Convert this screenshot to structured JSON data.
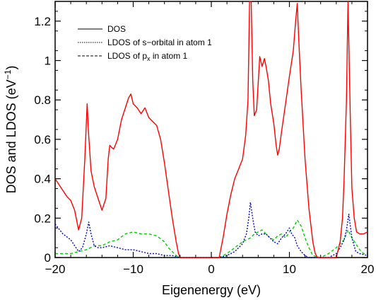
{
  "chart_data": {
    "type": "line",
    "xlabel": "Eigenenergy (eV)",
    "ylabel": "DOS and LDOS (eV",
    "ylabel_superscript": "−1",
    "ylabel_close": ")",
    "xlim": [
      -20,
      20
    ],
    "ylim": [
      0,
      1.3
    ],
    "x_ticks": [
      -20,
      -10,
      0,
      10,
      20
    ],
    "x_tick_labels": [
      "−20",
      "−10",
      "0",
      "10",
      "20"
    ],
    "y_ticks": [
      0,
      0.2,
      0.4,
      0.6,
      0.8,
      1,
      1.2
    ],
    "y_tick_labels": [
      "0",
      "0.2",
      "0.4",
      "0.6",
      "0.8",
      "1",
      "1.2"
    ],
    "legend_position": "top-left",
    "legend": [
      {
        "label": "DOS",
        "style": "solid"
      },
      {
        "label": "LDOS of s−orbital in atom 1",
        "style": "dotted"
      },
      {
        "label": "LDOS of p",
        "subscript": "x",
        "suffix": " in atom 1",
        "style": "dashed"
      }
    ],
    "series": [
      {
        "name": "DOS",
        "color": "#ff0000",
        "dash": "none",
        "x": [
          -20,
          -19.5,
          -19,
          -18.5,
          -18,
          -17.5,
          -17,
          -16.6,
          -16.2,
          -15.9,
          -15.7,
          -15.4,
          -15,
          -14.5,
          -14,
          -13.5,
          -13.2,
          -13,
          -12.8,
          -12.5,
          -12,
          -11.5,
          -11,
          -10.6,
          -10.3,
          -10,
          -9.5,
          -9,
          -8.5,
          -8,
          -7.5,
          -7,
          -6.5,
          -6,
          -5.5,
          -5,
          -4.5,
          -4.2,
          -4,
          1,
          1.5,
          2,
          2.5,
          3,
          3.5,
          4,
          4.4,
          4.7,
          4.9,
          5.1,
          5.3,
          5.5,
          5.8,
          6.2,
          6.5,
          6.8,
          7,
          7.3,
          7.6,
          8,
          8.3,
          8.5,
          8.7,
          9,
          9.5,
          10,
          10.5,
          10.8,
          11,
          11.2,
          11.5,
          12,
          12.5,
          13,
          13.3,
          13.6,
          14,
          16,
          16.5,
          16.8,
          17,
          17.3,
          17.5,
          17.8,
          18,
          18.3,
          18.6,
          19,
          19.5,
          20
        ],
        "values": [
          0.4,
          0.37,
          0.34,
          0.31,
          0.29,
          0.24,
          0.14,
          0.2,
          0.5,
          0.78,
          0.62,
          0.44,
          0.36,
          0.3,
          0.24,
          0.3,
          0.5,
          0.57,
          0.56,
          0.55,
          0.6,
          0.7,
          0.76,
          0.81,
          0.83,
          0.78,
          0.76,
          0.73,
          0.76,
          0.71,
          0.69,
          0.67,
          0.6,
          0.48,
          0.34,
          0.2,
          0.08,
          0.02,
          0,
          0,
          0.1,
          0.22,
          0.32,
          0.4,
          0.45,
          0.5,
          0.62,
          0.8,
          1.3,
          1.3,
          0.9,
          0.72,
          0.75,
          1.02,
          0.97,
          1.01,
          0.97,
          0.9,
          0.78,
          0.68,
          0.57,
          0.52,
          0.55,
          0.64,
          0.78,
          0.92,
          1.05,
          1.2,
          1.29,
          1.1,
          0.85,
          0.5,
          0.25,
          0.08,
          0.02,
          0,
          0,
          0,
          0.08,
          0.2,
          0.4,
          0.8,
          1.3,
          0.7,
          0.35,
          0.2,
          0.13,
          0.12,
          0.12,
          0.13
        ]
      },
      {
        "name": "LDOS of s−orbital in atom 1",
        "color": "#00cc00",
        "dash": "4,3",
        "x": [
          -20,
          -19,
          -18,
          -17,
          -16,
          -15,
          -14,
          -13,
          -12,
          -11,
          -10,
          -9,
          -8,
          -7,
          -6,
          -5.5,
          -5,
          -4.5,
          -4,
          1,
          2,
          3,
          4,
          5,
          5.5,
          6,
          6.5,
          7,
          7.5,
          8,
          8.5,
          9,
          9.5,
          10,
          10.5,
          11,
          11.5,
          12,
          12.5,
          13,
          14,
          15,
          16,
          16.5,
          17,
          17.5,
          18,
          18.5,
          19,
          19.5,
          20
        ],
        "values": [
          0.02,
          0.02,
          0.02,
          0.03,
          0.04,
          0.06,
          0.06,
          0.08,
          0.09,
          0.12,
          0.13,
          0.12,
          0.12,
          0.11,
          0.08,
          0.05,
          0.03,
          0.01,
          0,
          0,
          0.02,
          0.05,
          0.08,
          0.1,
          0.12,
          0.13,
          0.14,
          0.12,
          0.1,
          0.09,
          0.11,
          0.12,
          0.1,
          0.13,
          0.15,
          0.19,
          0.16,
          0.1,
          0.05,
          0.01,
          0,
          0.02,
          0.05,
          0.07,
          0.09,
          0.14,
          0.1,
          0.07,
          0.04,
          0.02,
          0.02
        ]
      },
      {
        "name": "LDOS of p_x in atom 1",
        "color": "#0000cc",
        "dash": "2,2",
        "x": [
          -20,
          -19,
          -18,
          -17,
          -16.5,
          -16,
          -15.7,
          -15.4,
          -15,
          -14.5,
          -14,
          -13,
          -12,
          -11,
          -10,
          -9,
          -8,
          -7,
          -6,
          -5,
          -4.5,
          -4,
          1,
          2,
          3,
          3.5,
          4,
          4.5,
          4.8,
          5,
          5.3,
          5.6,
          6,
          6.5,
          7,
          7.5,
          8,
          8.5,
          9,
          9.5,
          10,
          10.3,
          10.7,
          11,
          11.5,
          12,
          12.5,
          13,
          14,
          15,
          16,
          16.5,
          17,
          17.3,
          17.6,
          18,
          18.5,
          19,
          20
        ],
        "values": [
          0.17,
          0.12,
          0.09,
          0.03,
          0.05,
          0.12,
          0.18,
          0.12,
          0.06,
          0.05,
          0.05,
          0.06,
          0.05,
          0.04,
          0.04,
          0.03,
          0.02,
          0.02,
          0.01,
          0.01,
          0.005,
          0,
          0,
          0.01,
          0.03,
          0.05,
          0.07,
          0.12,
          0.2,
          0.28,
          0.2,
          0.13,
          0.11,
          0.12,
          0.12,
          0.1,
          0.08,
          0.07,
          0.1,
          0.12,
          0.15,
          0.12,
          0.1,
          0.06,
          0.03,
          0.01,
          0,
          0,
          0,
          0,
          0.02,
          0.05,
          0.09,
          0.14,
          0.22,
          0.1,
          0.03,
          0.02,
          0.01
        ]
      }
    ]
  }
}
